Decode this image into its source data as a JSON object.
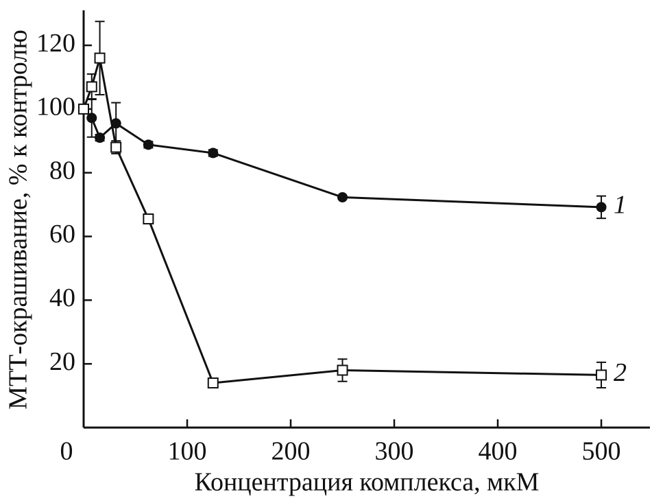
{
  "chart_data": {
    "type": "line",
    "x_label": "Концентрация комплекса, мкМ",
    "y_label": "МТТ-окрашивание, % к контролю",
    "xlim": [
      0,
      547
    ],
    "xticks": [
      0,
      100,
      200,
      300,
      400,
      500
    ],
    "ylim": [
      0,
      131
    ],
    "yticks": [
      20,
      40,
      60,
      80,
      100,
      120
    ],
    "series": [
      {
        "name": "1",
        "marker": "circle",
        "color": "#111111",
        "x": [
          0,
          7.8,
          15.6,
          31.25,
          62.5,
          125,
          250,
          500
        ],
        "values": [
          100,
          97.2,
          91,
          95.5,
          88.8,
          86.2,
          72.3,
          69.2
        ],
        "errors": [
          1,
          6,
          1,
          6.5,
          1,
          1,
          0.5,
          3.5
        ]
      },
      {
        "name": "2",
        "marker": "square",
        "color": "#111111",
        "x": [
          0,
          7.8,
          15.6,
          31.25,
          62.5,
          125,
          250,
          500
        ],
        "values": [
          100,
          107,
          116,
          88,
          65.5,
          14,
          18,
          16.5
        ],
        "errors": [
          1,
          4,
          11.5,
          2,
          1,
          1,
          3.5,
          4
        ]
      }
    ]
  }
}
